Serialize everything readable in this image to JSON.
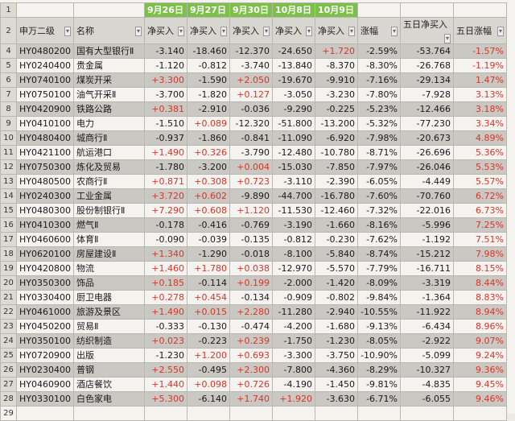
{
  "columns": [
    "申万二级",
    "名称",
    "净买入",
    "净买入",
    "净买入",
    "净买入",
    "净买入",
    "涨幅",
    "五日净买入",
    "五日涨幅"
  ],
  "dates": [
    "9月26日",
    "9月27日",
    "9月30日",
    "10月8日",
    "10月9日"
  ],
  "rows": [
    {
      "r": "3",
      "code": "HY0480200",
      "name": "国有大型银行Ⅱ",
      "v": [
        "-3.140",
        "-18.460",
        "-12.370",
        "-24.650",
        "+1.720"
      ],
      "chg": "-2.59%",
      "five": "-53.764",
      "fchg": "-1.57%",
      "shade": true
    },
    {
      "r": "4",
      "code": "HY0240400",
      "name": "贵金属",
      "v": [
        "-1.120",
        "-0.812",
        "-3.740",
        "-13.840",
        "-8.370"
      ],
      "chg": "-8.30%",
      "five": "-26.768",
      "fchg": "-1.19%",
      "shade": false
    },
    {
      "r": "5",
      "code": "HY0740100",
      "name": "煤炭开采",
      "v": [
        "+3.300",
        "-1.590",
        "+2.050",
        "-19.670",
        "-9.910"
      ],
      "chg": "-7.16%",
      "five": "-29.134",
      "fchg": "1.47%",
      "shade": true
    },
    {
      "r": "6",
      "code": "HY0750100",
      "name": "油气开采Ⅱ",
      "v": [
        "-3.700",
        "-1.820",
        "+0.127",
        "-3.050",
        "-3.230"
      ],
      "chg": "-7.80%",
      "five": "-7.928",
      "fchg": "3.13%",
      "shade": false
    },
    {
      "r": "7",
      "code": "HY0420900",
      "name": "铁路公路",
      "v": [
        "+0.381",
        "-2.910",
        "-0.036",
        "-9.290",
        "-0.225"
      ],
      "chg": "-5.23%",
      "five": "-12.466",
      "fchg": "3.18%",
      "shade": true
    },
    {
      "r": "8",
      "code": "HY0410100",
      "name": "电力",
      "v": [
        "-1.510",
        "+0.089",
        "-12.320",
        "-51.800",
        "-13.200"
      ],
      "chg": "-5.32%",
      "five": "-77.230",
      "fchg": "3.34%",
      "shade": false
    },
    {
      "r": "9",
      "code": "HY0480400",
      "name": "城商行Ⅱ",
      "v": [
        "-0.937",
        "-1.860",
        "-0.841",
        "-11.090",
        "-6.920"
      ],
      "chg": "-7.98%",
      "five": "-20.673",
      "fchg": "4.89%",
      "shade": true
    },
    {
      "r": "10",
      "code": "HY0421100",
      "name": "航运港口",
      "v": [
        "+1.490",
        "+0.326",
        "-3.790",
        "-12.480",
        "-10.780"
      ],
      "chg": "-8.71%",
      "five": "-26.696",
      "fchg": "5.36%",
      "shade": false
    },
    {
      "r": "11",
      "code": "HY0750300",
      "name": "炼化及贸易",
      "v": [
        "-1.780",
        "-3.200",
        "+0.004",
        "-15.030",
        "-7.850"
      ],
      "chg": "-7.97%",
      "five": "-26.046",
      "fchg": "5.53%",
      "shade": true
    },
    {
      "r": "12",
      "code": "HY0480500",
      "name": "农商行Ⅱ",
      "v": [
        "+0.871",
        "+0.308",
        "+0.723",
        "-3.110",
        "-2.390"
      ],
      "chg": "-6.05%",
      "five": "-4.449",
      "fchg": "5.57%",
      "shade": false
    },
    {
      "r": "13",
      "code": "HY0240300",
      "name": "工业金属",
      "v": [
        "+3.720",
        "+0.602",
        "-9.890",
        "-44.700",
        "-16.780"
      ],
      "chg": "-7.60%",
      "five": "-70.760",
      "fchg": "6.72%",
      "shade": true
    },
    {
      "r": "14",
      "code": "HY0480300",
      "name": "股份制银行Ⅱ",
      "v": [
        "+7.290",
        "+0.608",
        "+1.120",
        "-11.530",
        "-12.460"
      ],
      "chg": "-7.32%",
      "five": "-22.016",
      "fchg": "6.73%",
      "shade": false
    },
    {
      "r": "15",
      "code": "HY0410300",
      "name": "燃气Ⅱ",
      "v": [
        "-0.178",
        "-0.416",
        "-0.769",
        "-3.190",
        "-1.660"
      ],
      "chg": "-8.16%",
      "five": "-5.996",
      "fchg": "7.25%",
      "shade": true
    },
    {
      "r": "16",
      "code": "HY0460600",
      "name": "体育Ⅱ",
      "v": [
        "-0.090",
        "-0.039",
        "-0.135",
        "-0.812",
        "-0.230"
      ],
      "chg": "-7.62%",
      "five": "-1.192",
      "fchg": "7.51%",
      "shade": false
    },
    {
      "r": "17",
      "code": "HY0620100",
      "name": "房屋建设Ⅱ",
      "v": [
        "+1.340",
        "-1.290",
        "-0.018",
        "-8.100",
        "-5.840"
      ],
      "chg": "-8.74%",
      "five": "-15.212",
      "fchg": "7.98%",
      "shade": true
    },
    {
      "r": "18",
      "code": "HY0420800",
      "name": "物流",
      "v": [
        "+1.460",
        "+1.780",
        "+0.038",
        "-12.970",
        "-5.570"
      ],
      "chg": "-7.79%",
      "five": "-16.711",
      "fchg": "8.15%",
      "shade": false
    },
    {
      "r": "19",
      "code": "HY0350300",
      "name": "饰品",
      "v": [
        "+0.185",
        "-0.114",
        "+0.199",
        "-2.000",
        "-1.420"
      ],
      "chg": "-8.09%",
      "five": "-3.319",
      "fchg": "8.44%",
      "shade": true
    },
    {
      "r": "20",
      "code": "HY0330400",
      "name": "厨卫电器",
      "v": [
        "+0.278",
        "+0.454",
        "-0.134",
        "-0.909",
        "-0.802"
      ],
      "chg": "-9.84%",
      "five": "-1.364",
      "fchg": "8.83%",
      "shade": false
    },
    {
      "r": "21",
      "code": "HY0461000",
      "name": "旅游及景区",
      "v": [
        "+1.490",
        "+0.015",
        "+2.280",
        "-11.280",
        "-2.940"
      ],
      "chg": "-10.55%",
      "five": "-11.922",
      "fchg": "8.94%",
      "shade": true
    },
    {
      "r": "22",
      "code": "HY0450200",
      "name": "贸易Ⅱ",
      "v": [
        "-0.333",
        "-0.130",
        "-0.474",
        "-4.200",
        "-1.680"
      ],
      "chg": "-9.13%",
      "five": "-6.434",
      "fchg": "8.96%",
      "shade": false
    },
    {
      "r": "23",
      "code": "HY0350100",
      "name": "纺织制造",
      "v": [
        "+0.023",
        "-0.223",
        "+0.239",
        "-1.750",
        "-1.230"
      ],
      "chg": "-8.05%",
      "five": "-2.922",
      "fchg": "9.07%",
      "shade": true
    },
    {
      "r": "24",
      "code": "HY0720900",
      "name": "出版",
      "v": [
        "-1.230",
        "+1.200",
        "+0.693",
        "-3.300",
        "-3.750"
      ],
      "chg": "-10.90%",
      "five": "-5.099",
      "fchg": "9.24%",
      "shade": false
    },
    {
      "r": "25",
      "code": "HY0230400",
      "name": "普钢",
      "v": [
        "+2.550",
        "-0.495",
        "+2.300",
        "-7.800",
        "-4.360"
      ],
      "chg": "-8.29%",
      "five": "-10.327",
      "fchg": "9.36%",
      "shade": true
    },
    {
      "r": "26",
      "code": "HY0460900",
      "name": "酒店餐饮",
      "v": [
        "+1.440",
        "+0.098",
        "+0.726",
        "-4.190",
        "-1.450"
      ],
      "chg": "-9.81%",
      "five": "-4.835",
      "fchg": "9.45%",
      "shade": false
    },
    {
      "r": "27",
      "code": "HY0330100",
      "name": "白色家电",
      "v": [
        "+5.300",
        "-6.140",
        "+1.740",
        "+1.920",
        "-3.630"
      ],
      "chg": "-6.71%",
      "five": "-6.055",
      "fchg": "9.46%",
      "shade": true
    }
  ]
}
